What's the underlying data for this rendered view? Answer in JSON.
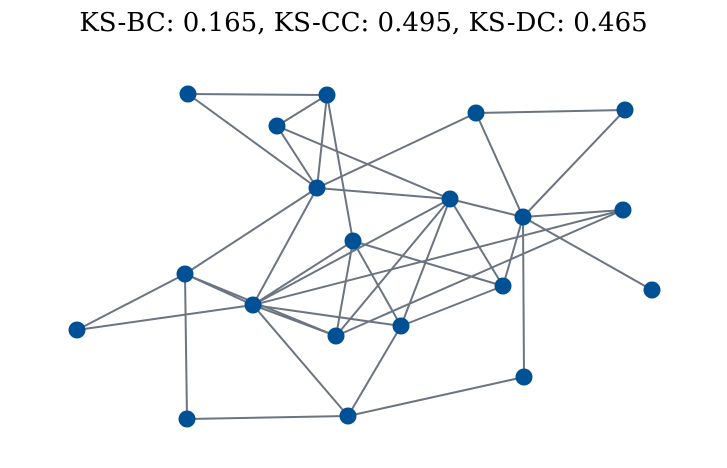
{
  "title": "KS-BC: 0.165, KS-CC: 0.495, KS-DC: 0.465",
  "colors": {
    "node": "#005096",
    "edge": "#6b7480"
  },
  "graph": {
    "nodes": [
      {
        "id": "n1"
      },
      {
        "id": "n2"
      },
      {
        "id": "n3"
      },
      {
        "id": "n4"
      },
      {
        "id": "n5"
      },
      {
        "id": "n6"
      },
      {
        "id": "n7"
      },
      {
        "id": "n8"
      },
      {
        "id": "n9"
      },
      {
        "id": "n10"
      },
      {
        "id": "n11"
      },
      {
        "id": "n12"
      },
      {
        "id": "n13"
      },
      {
        "id": "n14"
      },
      {
        "id": "n15"
      },
      {
        "id": "n16"
      },
      {
        "id": "n17"
      },
      {
        "id": "n18"
      },
      {
        "id": "n19"
      },
      {
        "id": "n20"
      }
    ],
    "edges": [
      [
        "n1",
        "n2"
      ],
      [
        "n1",
        "n6"
      ],
      [
        "n2",
        "n3"
      ],
      [
        "n2",
        "n6"
      ],
      [
        "n2",
        "n9"
      ],
      [
        "n3",
        "n6"
      ],
      [
        "n3",
        "n7"
      ],
      [
        "n4",
        "n5"
      ],
      [
        "n4",
        "n6"
      ],
      [
        "n4",
        "n8"
      ],
      [
        "n5",
        "n8"
      ],
      [
        "n6",
        "n7"
      ],
      [
        "n6",
        "n10"
      ],
      [
        "n6",
        "n12"
      ],
      [
        "n7",
        "n8"
      ],
      [
        "n7",
        "n12"
      ],
      [
        "n7",
        "n13"
      ],
      [
        "n7",
        "n15"
      ],
      [
        "n7",
        "n16"
      ],
      [
        "n8",
        "n11"
      ],
      [
        "n8",
        "n13"
      ],
      [
        "n8",
        "n17"
      ],
      [
        "n8",
        "n18"
      ],
      [
        "n9",
        "n12"
      ],
      [
        "n9",
        "n13"
      ],
      [
        "n9",
        "n15"
      ],
      [
        "n9",
        "n16"
      ],
      [
        "n10",
        "n12"
      ],
      [
        "n10",
        "n14"
      ],
      [
        "n10",
        "n15"
      ],
      [
        "n10",
        "n19"
      ],
      [
        "n11",
        "n12"
      ],
      [
        "n11",
        "n15"
      ],
      [
        "n12",
        "n14"
      ],
      [
        "n12",
        "n15"
      ],
      [
        "n12",
        "n16"
      ],
      [
        "n12",
        "n20"
      ],
      [
        "n13",
        "n16"
      ],
      [
        "n16",
        "n20"
      ],
      [
        "n18",
        "n20"
      ],
      [
        "n19",
        "n20"
      ]
    ]
  }
}
